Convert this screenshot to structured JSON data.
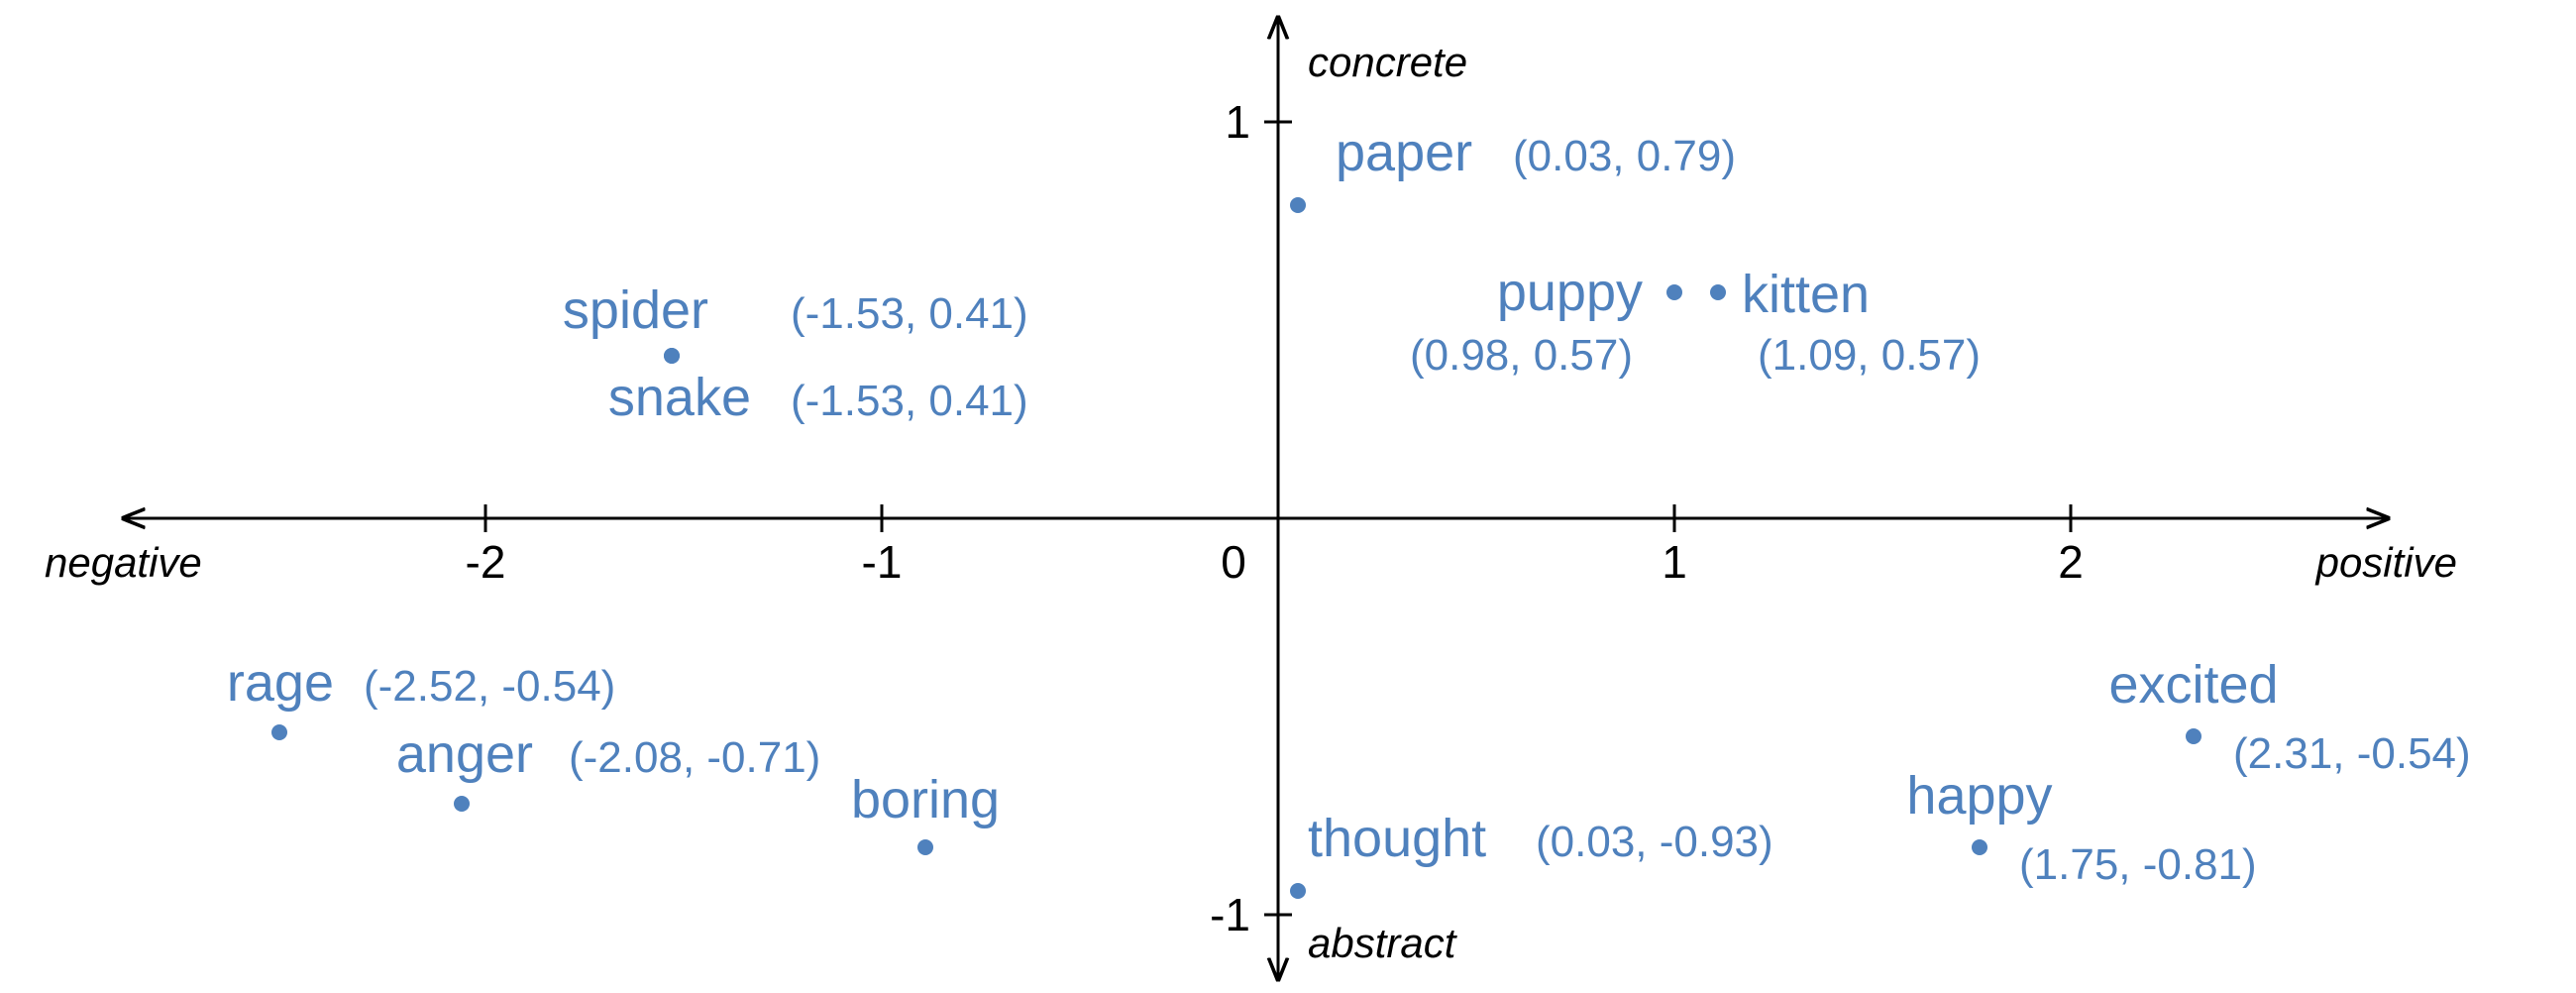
{
  "chart_data": {
    "type": "scatter",
    "title": "",
    "xlim": [
      -3,
      3
    ],
    "ylim": [
      -1.15,
      1.25
    ],
    "x_axis": {
      "negative_label": "negative",
      "positive_label": "positive",
      "ticks": [
        -2,
        -1,
        0,
        1,
        2
      ],
      "tick_labels": [
        "-2",
        "-1",
        "0",
        "1",
        "2"
      ]
    },
    "y_axis": {
      "positive_label": "concrete",
      "negative_label": "abstract",
      "ticks": [
        1,
        -1
      ],
      "tick_labels": [
        "1",
        "-1"
      ]
    },
    "grid": false,
    "point_color": "#4f81bd",
    "points": [
      {
        "word": "paper",
        "coord": "(0.03, 0.79)",
        "x": 0.05,
        "y": 0.79
      },
      {
        "word": "spider",
        "coord": "(-1.53, 0.41)",
        "x": -1.53,
        "y": 0.41
      },
      {
        "word": "snake",
        "coord": "(-1.53, 0.41)",
        "x": -1.53,
        "y": 0.41
      },
      {
        "word": "puppy",
        "coord": "(0.98, 0.57)",
        "x": 1.0,
        "y": 0.57
      },
      {
        "word": "kitten",
        "coord": "(1.09, 0.57)",
        "x": 1.11,
        "y": 0.57
      },
      {
        "word": "rage",
        "coord": "(-2.52, -0.54)",
        "x": -2.52,
        "y": -0.54
      },
      {
        "word": "anger",
        "coord": "(-2.08, -0.71)",
        "x": -2.06,
        "y": -0.72
      },
      {
        "word": "boring",
        "coord": "",
        "x": -0.89,
        "y": -0.83
      },
      {
        "word": "thought",
        "coord": "(0.03, -0.93)",
        "x": 0.05,
        "y": -0.94
      },
      {
        "word": "excited",
        "coord": "(2.31, -0.54)",
        "x": 2.31,
        "y": -0.55
      },
      {
        "word": "happy",
        "coord": "(1.75, -0.81)",
        "x": 1.77,
        "y": -0.83
      }
    ]
  }
}
